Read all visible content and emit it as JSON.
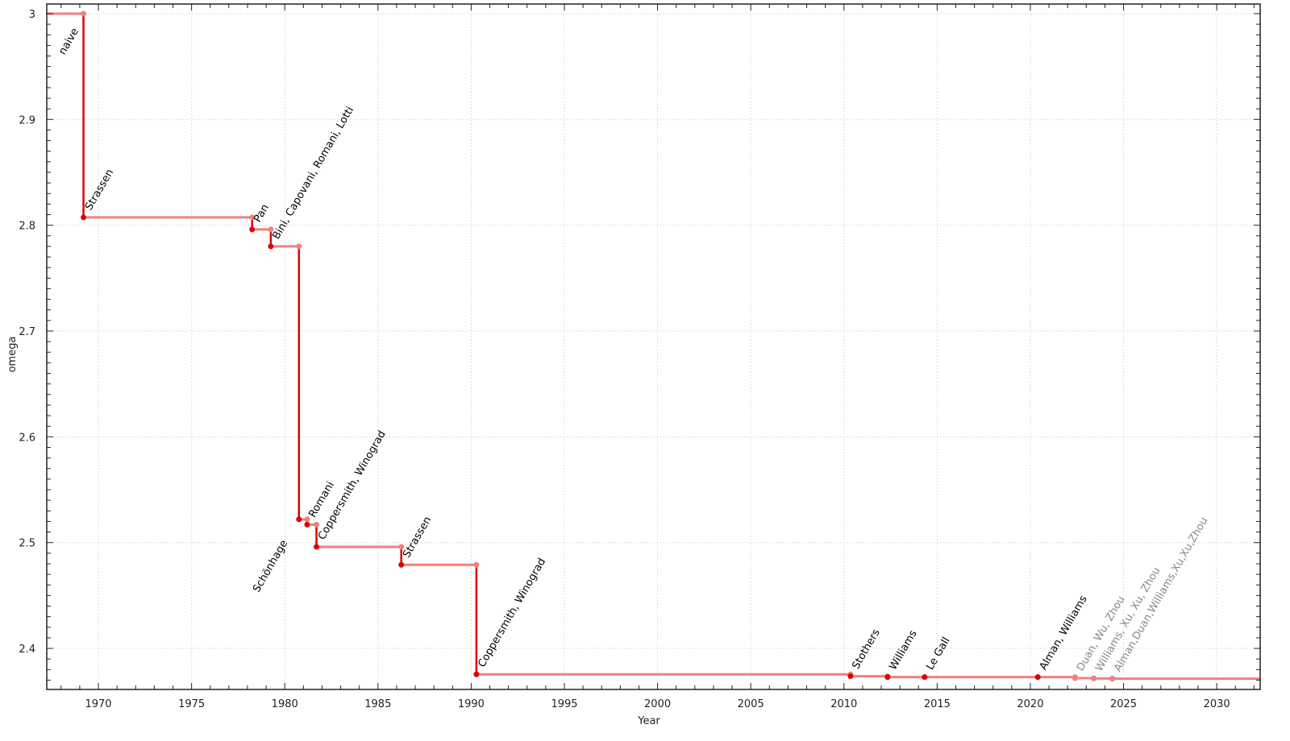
{
  "chart_data": {
    "type": "line",
    "title": "",
    "xlabel": "Year",
    "ylabel": "omega",
    "xlim": [
      1967.23,
      2032.33
    ],
    "ylim": [
      2.3612,
      3.0091
    ],
    "x_ticks": [
      1970,
      1975,
      1980,
      1985,
      1990,
      1995,
      2000,
      2005,
      2010,
      2015,
      2020,
      2025,
      2030
    ],
    "y_ticks": [
      2.4,
      2.5,
      2.6,
      2.7,
      2.8,
      2.9,
      3
    ],
    "y_tick_labels": [
      "2.4",
      "2.5",
      "2.6",
      "2.7",
      "2.8",
      "2.9",
      "3"
    ],
    "grid": true,
    "step": true,
    "colors": {
      "line": "#f08080",
      "drop": "#e00000",
      "label": "#000000",
      "label_muted": "#888888"
    },
    "series": [
      {
        "points": [
          {
            "x": 1969.2,
            "y": 3.0,
            "label": "naive",
            "muted": false
          },
          {
            "x": 1969.2,
            "y": 2.8074,
            "label": "Strassen",
            "muted": false
          },
          {
            "x": 1978.25,
            "y": 2.796,
            "label": "Pan",
            "muted": false
          },
          {
            "x": 1979.25,
            "y": 2.78,
            "label": "Bini, Capovani, Romani, Lotti",
            "muted": false
          },
          {
            "x": 1980.76,
            "y": 2.522,
            "label": "Schönhage",
            "muted": false
          },
          {
            "x": 1981.2,
            "y": 2.517,
            "label": "Romani",
            "muted": false
          },
          {
            "x": 1981.7,
            "y": 2.496,
            "label": "Coppersmith, Winograd",
            "muted": false
          },
          {
            "x": 1986.25,
            "y": 2.479,
            "label": "Strassen",
            "muted": false
          },
          {
            "x": 1990.28,
            "y": 2.3755,
            "label": "Coppersmith, Winograd",
            "muted": false
          },
          {
            "x": 2010.35,
            "y": 2.3737,
            "label": "Stothers",
            "muted": false
          },
          {
            "x": 2012.34,
            "y": 2.3729,
            "label": "Williams",
            "muted": false
          },
          {
            "x": 2014.33,
            "y": 2.37286,
            "label": "Le Gall",
            "muted": false
          },
          {
            "x": 2020.4,
            "y": 2.37286,
            "label": "Alman, Williams",
            "muted": false
          },
          {
            "x": 2022.4,
            "y": 2.371866,
            "label": "Duan, Wu, Zhou",
            "muted": true
          },
          {
            "x": 2023.4,
            "y": 2.371552,
            "label": "Williams, Xu, Xu, Zhou",
            "muted": true
          },
          {
            "x": 2024.4,
            "y": 2.371339,
            "label": "Alman,Duan,Williams,Xu,Xu,Zhou",
            "muted": true
          }
        ]
      }
    ]
  }
}
